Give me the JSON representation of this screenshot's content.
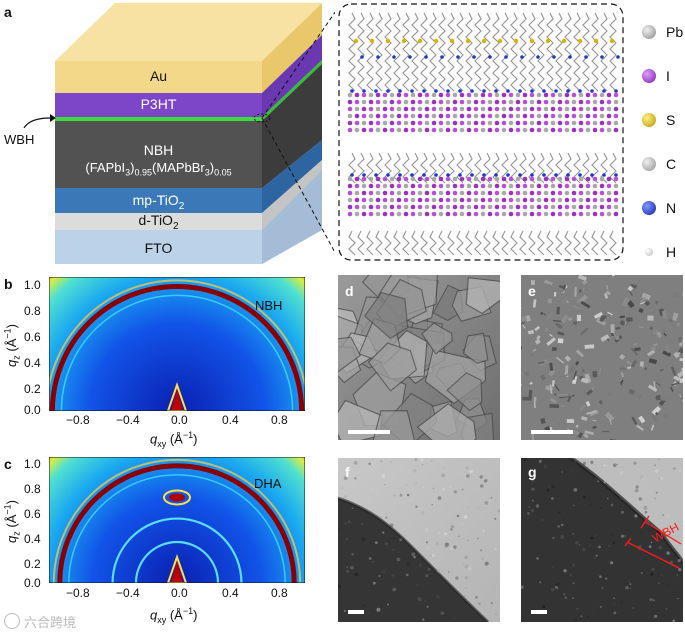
{
  "figure": {
    "panel_a": {
      "label": "a",
      "layers": [
        {
          "name": "Au"
        },
        {
          "name": "P3HT"
        },
        {
          "name": "NBH"
        },
        {
          "name": "mp-TiO",
          "sub": "2"
        },
        {
          "name": "d-TiO",
          "sub": "2"
        },
        {
          "name": "FTO"
        }
      ],
      "nbh_formula": {
        "part1": "(FAPbI",
        "sub1": "3",
        "part2": ")",
        "sub2": "0.95",
        "part3": "(MAPbBr",
        "sub3": "3",
        "part4": ")",
        "sub4": "0.05"
      },
      "wbh_label": "WBH",
      "colors": {
        "au": "#f4d88a",
        "p3ht": "#7d46c8",
        "wbh": "#3ddc3d",
        "nbh": "#505050",
        "mp_tio2": "#3a78b8",
        "d_tio2": "#d8d8d8",
        "fto": "#b8cfe6"
      }
    },
    "legend": [
      {
        "symbol": "Pb",
        "color": "#a8a8a8"
      },
      {
        "symbol": "I",
        "color": "#9a2fc0"
      },
      {
        "symbol": "S",
        "color": "#d6b400"
      },
      {
        "symbol": "C",
        "color": "#b0b0b0"
      },
      {
        "symbol": "N",
        "color": "#2038c8"
      },
      {
        "symbol": "H",
        "color": "#e0e0e0"
      }
    ],
    "panel_b": {
      "label": "b",
      "sample": "NBH"
    },
    "panel_c": {
      "label": "c",
      "sample": "DHA"
    },
    "giwaxs_axes": {
      "y_ticks": [
        "1.0",
        "0.8",
        "0.6",
        "0.4",
        "0.2",
        "0.0"
      ],
      "x_ticks": [
        "−0.8",
        "−0.4",
        "0.0",
        "0.4",
        "0.8"
      ],
      "y_label_main": "q",
      "y_label_sub": "z",
      "y_label_unit": " (Å",
      "y_label_exp": "−1",
      "y_label_close": ")",
      "x_label_main": "q",
      "x_label_sub": "xy",
      "x_label_unit": " (Å",
      "x_label_exp": "−1",
      "x_label_close": ")"
    },
    "panel_d": {
      "label": "d"
    },
    "panel_e": {
      "label": "e"
    },
    "panel_f": {
      "label": "f"
    },
    "panel_g": {
      "label": "g",
      "annotation": "WBH"
    },
    "watermark": "六合跨境"
  }
}
